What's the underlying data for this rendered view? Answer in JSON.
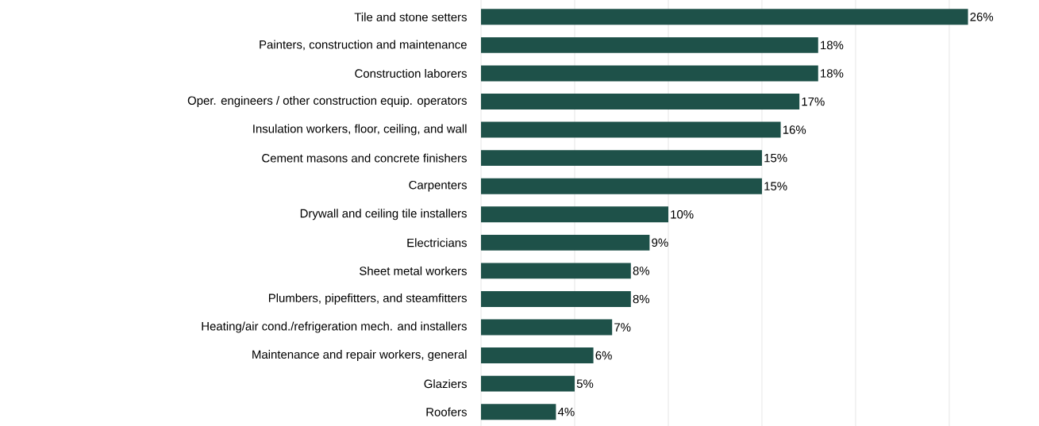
{
  "chart_data": {
    "type": "bar",
    "orientation": "horizontal",
    "categories": [
      "Tile and stone setters",
      "Painters, construction and maintenance",
      "Construction laborers",
      "Oper. engineers / other construction equip. operators",
      "Insulation workers, floor, ceiling, and wall",
      "Cement masons and concrete finishers",
      "Carpenters",
      "Drywall and ceiling tile installers",
      "Electricians",
      "Sheet metal workers",
      "Plumbers, pipefitters, and steamfitters",
      "Heating/air cond./refrigeration mech. and installers",
      "Maintenance and repair workers, general",
      "Glaziers",
      "Roofers"
    ],
    "values": [
      26,
      18,
      18,
      17,
      16,
      15,
      15,
      10,
      9,
      8,
      8,
      7,
      6,
      5,
      4
    ],
    "value_labels": [
      "26%",
      "18%",
      "18%",
      "17%",
      "16%",
      "15%",
      "15%",
      "10%",
      "9%",
      "8%",
      "8%",
      "7%",
      "6%",
      "5%",
      "4%"
    ],
    "color": "#1e5149",
    "grid": "x",
    "tick_labels": "y"
  }
}
